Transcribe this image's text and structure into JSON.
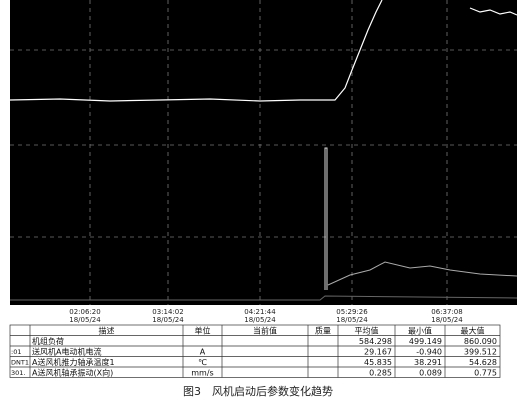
{
  "time_axis": [
    {
      "time": "02:06:20",
      "date": "18/05/24"
    },
    {
      "time": "03:14:02",
      "date": "18/05/24"
    },
    {
      "time": "04:21:44",
      "date": "18/05/24"
    },
    {
      "time": "05:29:26",
      "date": "18/05/24"
    },
    {
      "time": "06:37:08",
      "date": "18/05/24"
    }
  ],
  "table": {
    "header": [
      "描述",
      "单位",
      "当前值",
      "质量",
      "平均值",
      "最小值",
      "最大值"
    ],
    "rows": [
      {
        "desc": "机组负荷",
        "avg": "584.298",
        "min": "499.149",
        "max": "860.090"
      },
      {
        "code": ":01",
        "desc": "送风机A电动机电流",
        "unit": "A",
        "avg": "29.167",
        "min": "-0.940",
        "max": "399.512"
      },
      {
        "code": "DNT1",
        "desc": "A送风机推力轴承温度1",
        "unit": "℃",
        "avg": "45.835",
        "min": "38.291",
        "max": "54.628"
      },
      {
        "code": "301.",
        "desc": "A送风机轴承振动(X向)",
        "unit": "mm/s",
        "avg": "0.285",
        "min": "0.089",
        "max": "0.775"
      }
    ]
  },
  "caption": "图3　风机启动后参数变化趋势"
}
